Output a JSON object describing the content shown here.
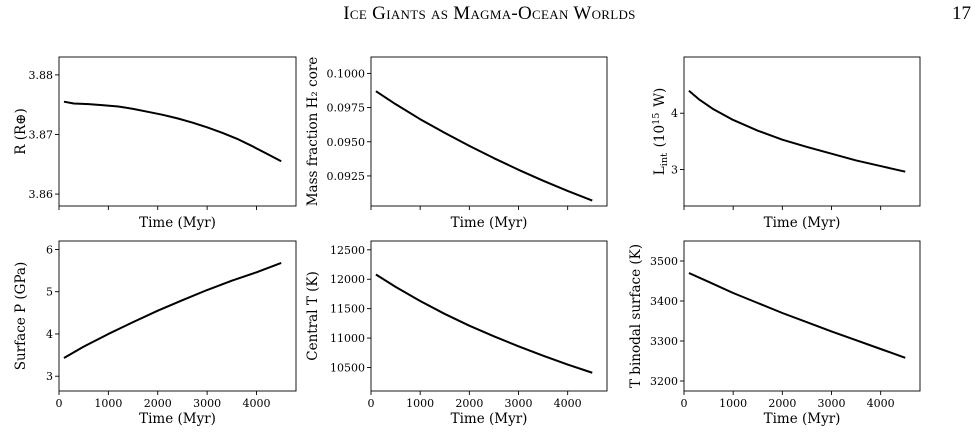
{
  "header": {
    "running_title": "Ice Giants as Magma-Ocean Worlds",
    "page_number": "17"
  },
  "chart_data": [
    {
      "type": "line",
      "xlabel": "Time (Myr)",
      "ylabel": "R (R⊕)",
      "xlim": [
        0,
        4800
      ],
      "ylim": [
        3.858,
        3.883
      ],
      "xticks": [
        0,
        1000,
        2000,
        3000,
        4000
      ],
      "yticks": [
        3.86,
        3.87,
        3.88
      ],
      "ytick_labels": [
        "3.86",
        "3.87",
        "3.88"
      ],
      "show_xtick_labels": false,
      "series": [
        {
          "color": "#000000",
          "x": [
            100,
            300,
            600,
            900,
            1200,
            1500,
            1800,
            2100,
            2400,
            2700,
            3000,
            3300,
            3600,
            3900,
            4200,
            4500
          ],
          "y": [
            3.8755,
            3.8752,
            3.8751,
            3.8749,
            3.8747,
            3.8743,
            3.8738,
            3.8733,
            3.8727,
            3.872,
            3.8712,
            3.8703,
            3.8693,
            3.8681,
            3.8668,
            3.8655
          ]
        }
      ]
    },
    {
      "type": "line",
      "xlabel": "Time (Myr)",
      "ylabel": "Mass fraction H₂ core",
      "xlim": [
        0,
        4800
      ],
      "ylim": [
        0.0903,
        0.1012
      ],
      "xticks": [
        0,
        1000,
        2000,
        3000,
        4000
      ],
      "yticks": [
        0.0925,
        0.095,
        0.0975,
        0.1
      ],
      "ytick_labels": [
        "0.0925",
        "0.0950",
        "0.0975",
        "0.1000"
      ],
      "show_xtick_labels": false,
      "series": [
        {
          "color": "#000000",
          "x": [
            100,
            500,
            1000,
            1500,
            2000,
            2500,
            3000,
            3500,
            4000,
            4500
          ],
          "y": [
            0.0987,
            0.09775,
            0.09665,
            0.09565,
            0.0947,
            0.0938,
            0.09295,
            0.09215,
            0.0914,
            0.0907
          ]
        }
      ]
    },
    {
      "type": "line",
      "xlabel": "Time (Myr)",
      "ylabel": "L_int (10^15 W)",
      "xlim": [
        0,
        4800
      ],
      "ylim": [
        2.35,
        5.0
      ],
      "xticks": [
        0,
        1000,
        2000,
        3000,
        4000
      ],
      "yticks": [
        3,
        4
      ],
      "ytick_labels": [
        "3",
        "4"
      ],
      "show_xtick_labels": false,
      "series": [
        {
          "color": "#000000",
          "x": [
            100,
            300,
            600,
            1000,
            1500,
            2000,
            2500,
            3000,
            3500,
            4000,
            4500
          ],
          "y": [
            4.4,
            4.25,
            4.07,
            3.88,
            3.69,
            3.53,
            3.4,
            3.28,
            3.16,
            3.06,
            2.96
          ]
        }
      ]
    },
    {
      "type": "line",
      "xlabel": "Time (Myr)",
      "ylabel": "Surface P (GPa)",
      "xlim": [
        0,
        4800
      ],
      "ylim": [
        2.65,
        6.2
      ],
      "xticks": [
        0,
        1000,
        2000,
        3000,
        4000
      ],
      "xtick_labels": [
        "0",
        "1000",
        "2000",
        "3000",
        "4000"
      ],
      "yticks": [
        3,
        4,
        5,
        6
      ],
      "ytick_labels": [
        "3",
        "4",
        "5",
        "6"
      ],
      "show_xtick_labels": true,
      "series": [
        {
          "color": "#000000",
          "x": [
            100,
            500,
            1000,
            1500,
            2000,
            2500,
            3000,
            3500,
            4000,
            4500
          ],
          "y": [
            3.43,
            3.7,
            4.0,
            4.28,
            4.55,
            4.8,
            5.04,
            5.26,
            5.46,
            5.68
          ]
        }
      ]
    },
    {
      "type": "line",
      "xlabel": "Time (Myr)",
      "ylabel": "Central T (K)",
      "xlim": [
        0,
        4800
      ],
      "ylim": [
        10100,
        12650
      ],
      "xticks": [
        0,
        1000,
        2000,
        3000,
        4000
      ],
      "xtick_labels": [
        "0",
        "1000",
        "2000",
        "3000",
        "4000"
      ],
      "yticks": [
        10500,
        11000,
        11500,
        12000,
        12500
      ],
      "ytick_labels": [
        "10500",
        "11000",
        "11500",
        "12000",
        "12500"
      ],
      "show_xtick_labels": true,
      "series": [
        {
          "color": "#000000",
          "x": [
            100,
            500,
            1000,
            1500,
            2000,
            2500,
            3000,
            3500,
            4000,
            4500
          ],
          "y": [
            12080,
            11870,
            11630,
            11410,
            11210,
            11030,
            10860,
            10700,
            10550,
            10410
          ]
        }
      ]
    },
    {
      "type": "line",
      "xlabel": "Time (Myr)",
      "ylabel": "T binodal surface (K)",
      "xlim": [
        0,
        4800
      ],
      "ylim": [
        3175,
        3550
      ],
      "xticks": [
        0,
        1000,
        2000,
        3000,
        4000
      ],
      "xtick_labels": [
        "0",
        "1000",
        "2000",
        "3000",
        "4000"
      ],
      "yticks": [
        3200,
        3300,
        3400,
        3500
      ],
      "ytick_labels": [
        "3200",
        "3300",
        "3400",
        "3500"
      ],
      "show_xtick_labels": true,
      "series": [
        {
          "color": "#000000",
          "x": [
            100,
            500,
            1000,
            1500,
            2000,
            2500,
            3000,
            3500,
            4000,
            4500
          ],
          "y": [
            3470,
            3448,
            3420,
            3395,
            3370,
            3347,
            3324,
            3302,
            3280,
            3258
          ]
        }
      ]
    }
  ]
}
